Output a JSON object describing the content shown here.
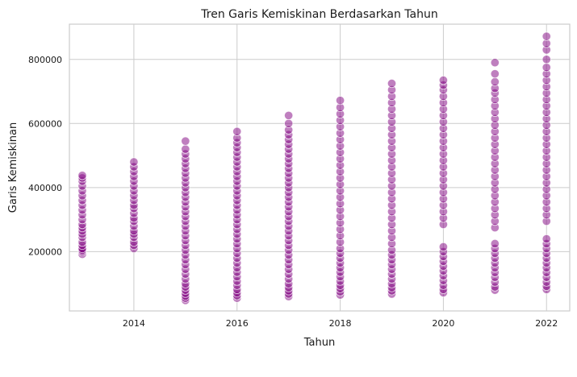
{
  "chart_data": {
    "type": "scatter",
    "title": "Tren Garis Kemiskinan Berdasarkan Tahun",
    "xlabel": "Tahun",
    "ylabel": "Garis Kemiskinan",
    "xlim": [
      2012.75,
      2022.45
    ],
    "ylim": [
      15000,
      910000
    ],
    "xticks": [
      2014,
      2016,
      2018,
      2020,
      2022
    ],
    "yticks": [
      200000,
      400000,
      600000,
      800000
    ],
    "grid": true,
    "colors": {
      "point_fill": "#800080",
      "point_edge": "#ffffff",
      "grid": "#cccccc",
      "axis_spine": "#cccccc",
      "background": "#ffffff"
    },
    "point_alpha": 0.5,
    "series": [
      {
        "x_values": [
          2013
        ],
        "ranges": [
          [
            192000,
            438000
          ]
        ],
        "points": [
          192000,
          200000,
          205000,
          210000,
          220000,
          230000,
          245000,
          255000,
          265000,
          275000,
          285000,
          300000,
          315000,
          330000,
          345000,
          360000,
          375000,
          390000,
          405000,
          420000,
          430000,
          438000
        ]
      }
    ],
    "points_by_year": [
      {
        "year": 2013,
        "points": [
          192000,
          200000,
          205000,
          210000,
          220000,
          230000,
          245000,
          255000,
          265000,
          275000,
          285000,
          300000,
          315000,
          330000,
          345000,
          360000,
          375000,
          390000,
          405000,
          420000,
          430000,
          438000
        ]
      },
      {
        "year": 2014,
        "points": [
          210000,
          220000,
          230000,
          245000,
          255000,
          265000,
          280000,
          295000,
          305000,
          320000,
          335000,
          345000,
          360000,
          375000,
          390000,
          405000,
          420000,
          435000,
          450000,
          465000,
          480000
        ]
      },
      {
        "year": 2015,
        "points": [
          48000,
          55000,
          62000,
          70000,
          80000,
          90000,
          100000,
          115000,
          130000,
          145000,
          160000,
          175000,
          190000,
          205000,
          220000,
          235000,
          250000,
          265000,
          280000,
          295000,
          310000,
          325000,
          340000,
          355000,
          370000,
          385000,
          400000,
          415000,
          430000,
          445000,
          460000,
          475000,
          490000,
          505000,
          520000,
          545000
        ]
      },
      {
        "year": 2016,
        "points": [
          55000,
          63000,
          72000,
          82000,
          95000,
          108000,
          122000,
          136000,
          150000,
          165000,
          180000,
          195000,
          210000,
          225000,
          240000,
          255000,
          270000,
          285000,
          300000,
          315000,
          330000,
          345000,
          360000,
          375000,
          390000,
          405000,
          420000,
          435000,
          450000,
          465000,
          480000,
          495000,
          510000,
          525000,
          540000,
          555000,
          575000
        ]
      },
      {
        "year": 2017,
        "points": [
          60000,
          68000,
          78000,
          88000,
          100000,
          115000,
          130000,
          145000,
          160000,
          175000,
          190000,
          205000,
          220000,
          235000,
          250000,
          265000,
          280000,
          295000,
          310000,
          325000,
          340000,
          355000,
          370000,
          385000,
          400000,
          415000,
          430000,
          445000,
          460000,
          475000,
          490000,
          505000,
          520000,
          535000,
          550000,
          565000,
          580000,
          600000,
          625000
        ]
      },
      {
        "year": 2018,
        "points": [
          65000,
          75000,
          85000,
          95000,
          108000,
          122000,
          136000,
          150000,
          165000,
          180000,
          195000,
          210000,
          230000,
          250000,
          270000,
          290000,
          310000,
          330000,
          350000,
          370000,
          390000,
          410000,
          430000,
          450000,
          470000,
          490000,
          510000,
          530000,
          550000,
          570000,
          590000,
          610000,
          630000,
          650000,
          672000
        ]
      },
      {
        "year": 2019,
        "points": [
          68000,
          78000,
          88000,
          100000,
          115000,
          130000,
          145000,
          160000,
          175000,
          190000,
          205000,
          225000,
          245000,
          265000,
          285000,
          305000,
          325000,
          345000,
          365000,
          385000,
          405000,
          425000,
          445000,
          465000,
          485000,
          505000,
          525000,
          545000,
          565000,
          585000,
          605000,
          625000,
          645000,
          665000,
          685000,
          705000,
          725000
        ]
      },
      {
        "year": 2020,
        "points": [
          72000,
          82000,
          95000,
          110000,
          125000,
          140000,
          155000,
          170000,
          185000,
          200000,
          215000,
          285000,
          305000,
          325000,
          345000,
          365000,
          385000,
          405000,
          425000,
          445000,
          465000,
          485000,
          505000,
          525000,
          545000,
          565000,
          585000,
          605000,
          625000,
          645000,
          665000,
          685000,
          705000,
          720000,
          735000
        ]
      },
      {
        "year": 2021,
        "points": [
          80000,
          90000,
          105000,
          120000,
          135000,
          150000,
          165000,
          180000,
          195000,
          210000,
          225000,
          275000,
          295000,
          315000,
          335000,
          355000,
          375000,
          395000,
          415000,
          435000,
          455000,
          475000,
          495000,
          515000,
          535000,
          555000,
          575000,
          595000,
          615000,
          635000,
          655000,
          675000,
          695000,
          710000,
          730000,
          755000,
          790000
        ]
      },
      {
        "year": 2022,
        "points": [
          82000,
          92000,
          105000,
          120000,
          135000,
          150000,
          165000,
          180000,
          195000,
          210000,
          225000,
          240000,
          295000,
          315000,
          335000,
          355000,
          375000,
          395000,
          415000,
          435000,
          455000,
          475000,
          495000,
          515000,
          535000,
          555000,
          575000,
          595000,
          615000,
          635000,
          655000,
          675000,
          695000,
          715000,
          735000,
          755000,
          775000,
          800000,
          830000,
          850000,
          872000
        ]
      }
    ]
  }
}
